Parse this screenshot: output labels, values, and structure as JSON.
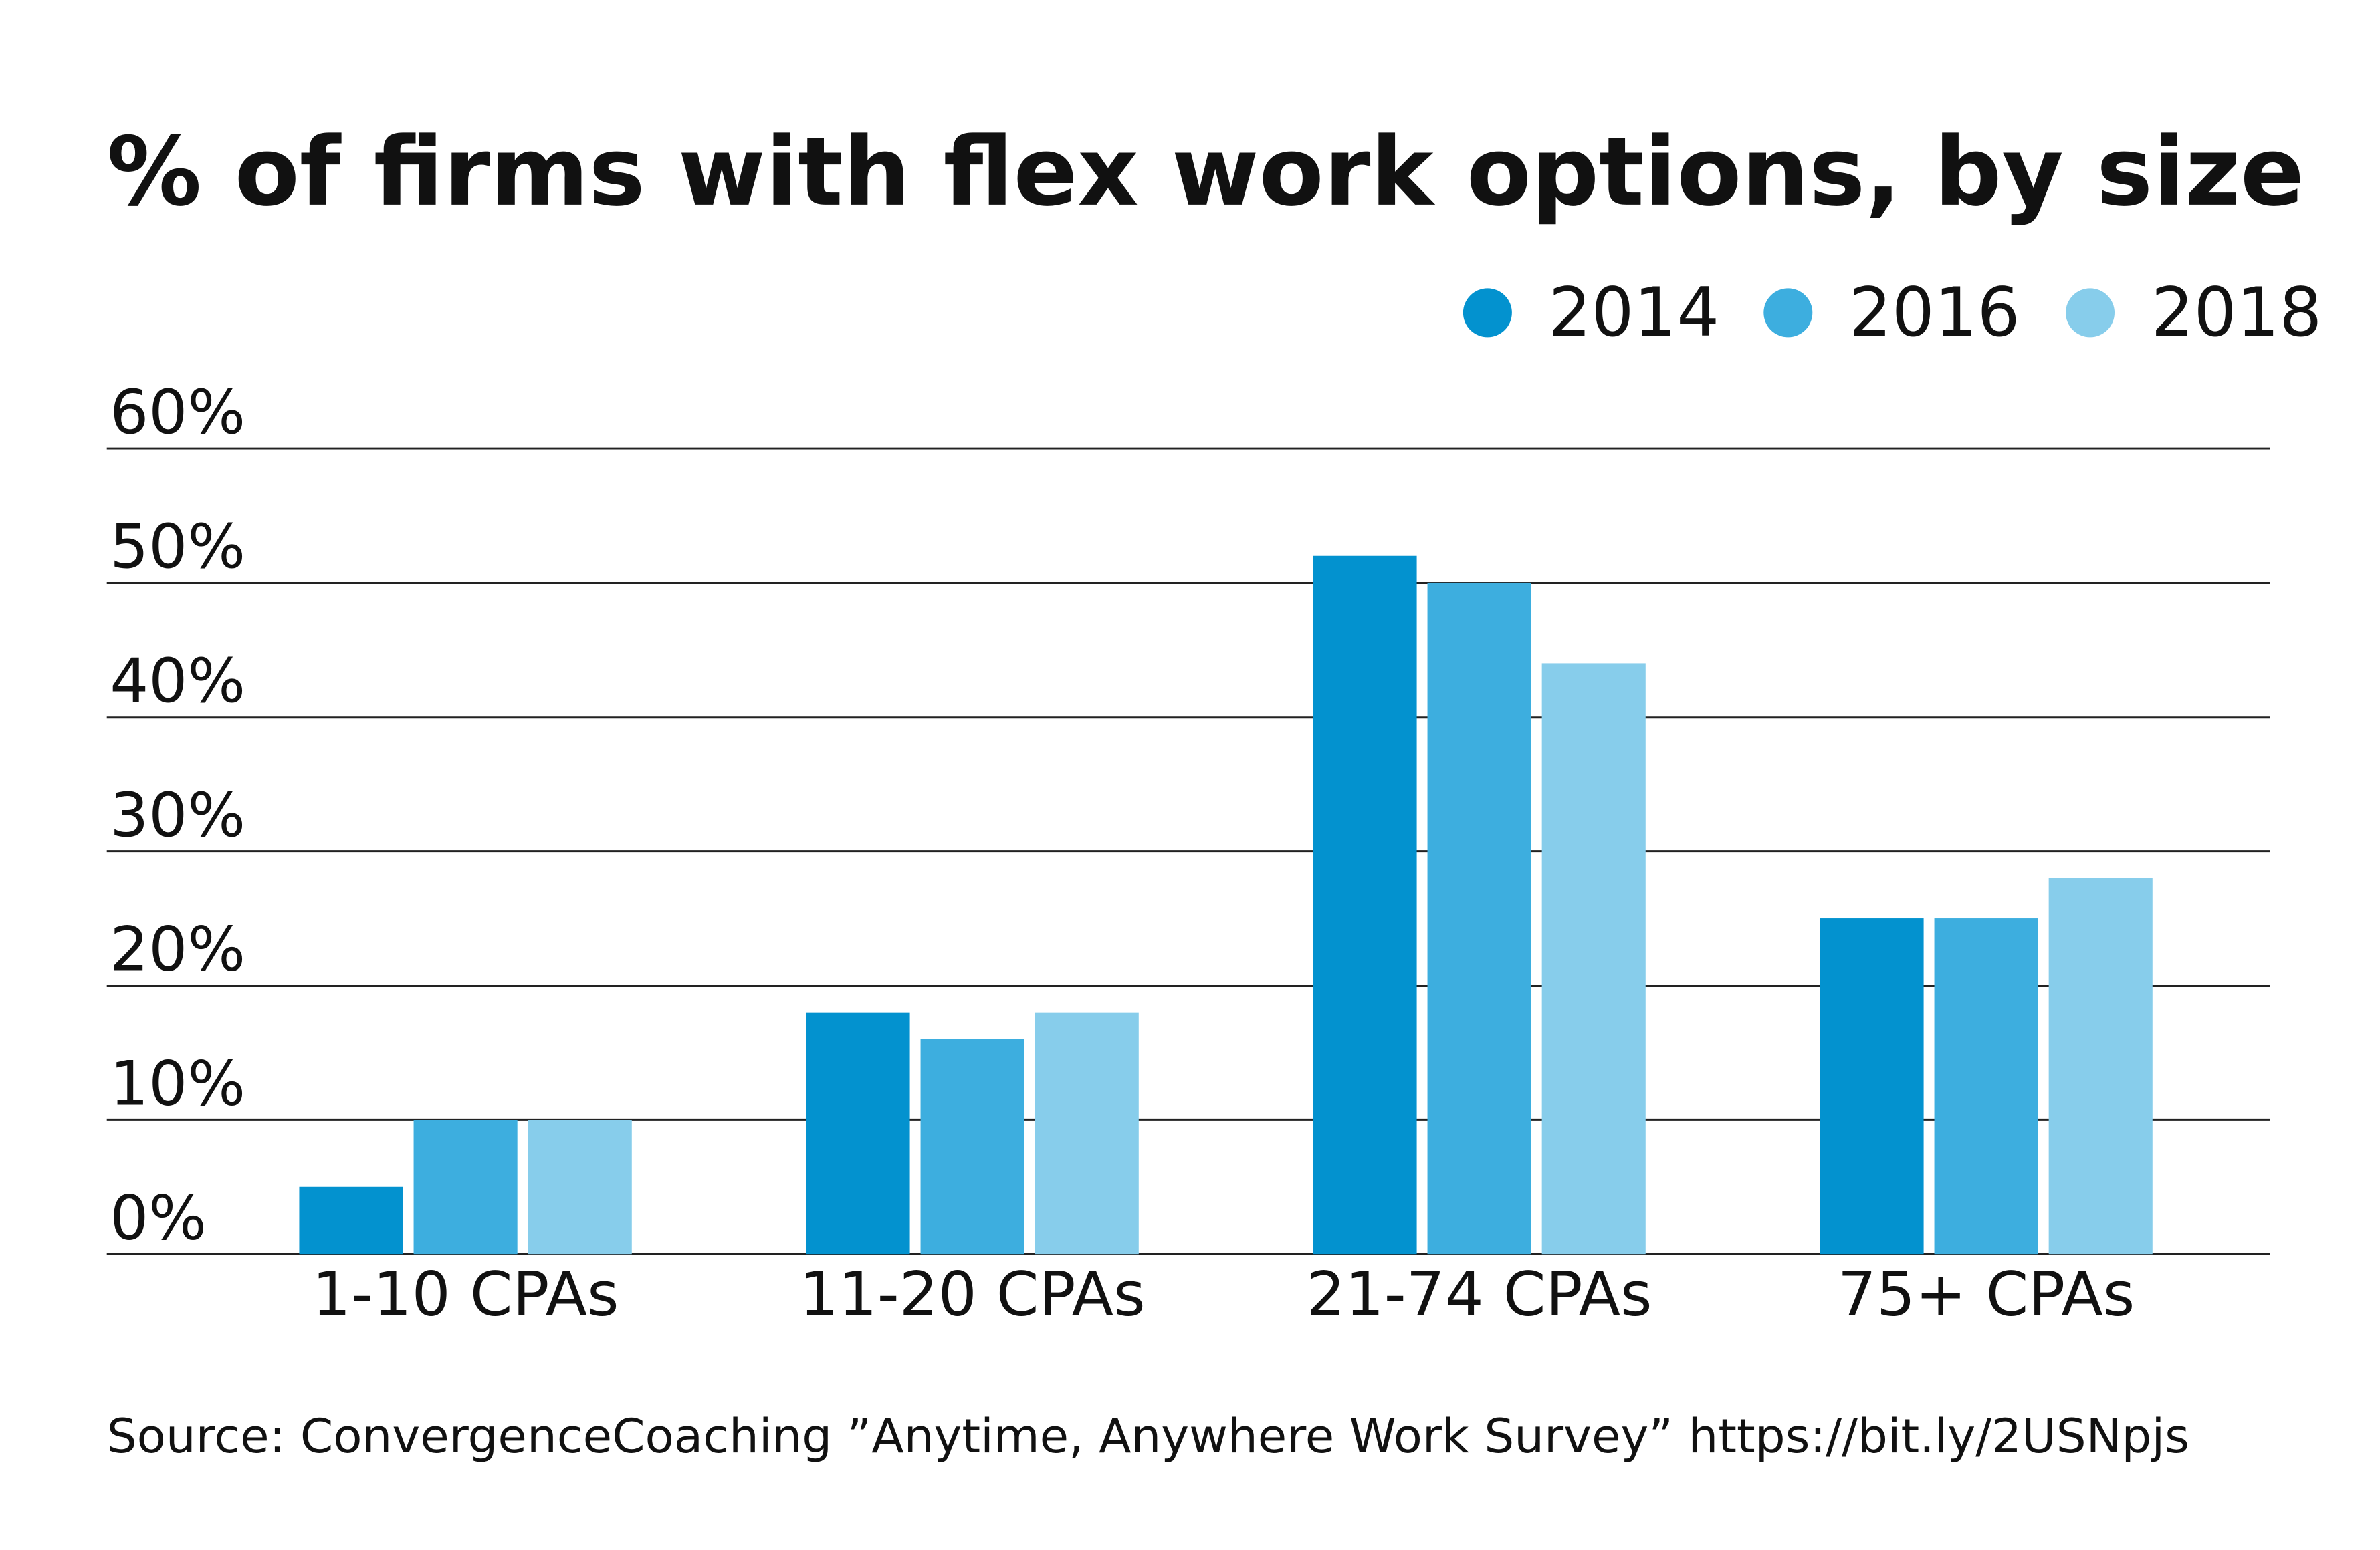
{
  "chart_data": {
    "type": "bar",
    "title": "% of firms with flex work options, by size",
    "categories": [
      "1-10 CPAs",
      "11-20 CPAs",
      "21-74 CPAs",
      "75+ CPAs"
    ],
    "series": [
      {
        "name": "2014",
        "color": "#0392cf",
        "values": [
          5,
          18,
          52,
          25
        ]
      },
      {
        "name": "2016",
        "color": "#3daedf",
        "values": [
          10,
          16,
          50,
          25
        ]
      },
      {
        "name": "2018",
        "color": "#87cdeb",
        "values": [
          10,
          18,
          44,
          28
        ]
      }
    ],
    "ylim": [
      0,
      60
    ],
    "yticks": [
      {
        "value": 0,
        "label": "0%"
      },
      {
        "value": 10,
        "label": "10%"
      },
      {
        "value": 20,
        "label": "20%"
      },
      {
        "value": 30,
        "label": "30%"
      },
      {
        "value": 40,
        "label": "40%"
      },
      {
        "value": 50,
        "label": "50%"
      },
      {
        "value": 60,
        "label": "60%"
      }
    ],
    "grid": true,
    "legend": "top-right",
    "source": "Source: ConvergenceCoaching ”Anytime, Anywhere Work Survey” https://bit.ly/2USNpjs"
  }
}
